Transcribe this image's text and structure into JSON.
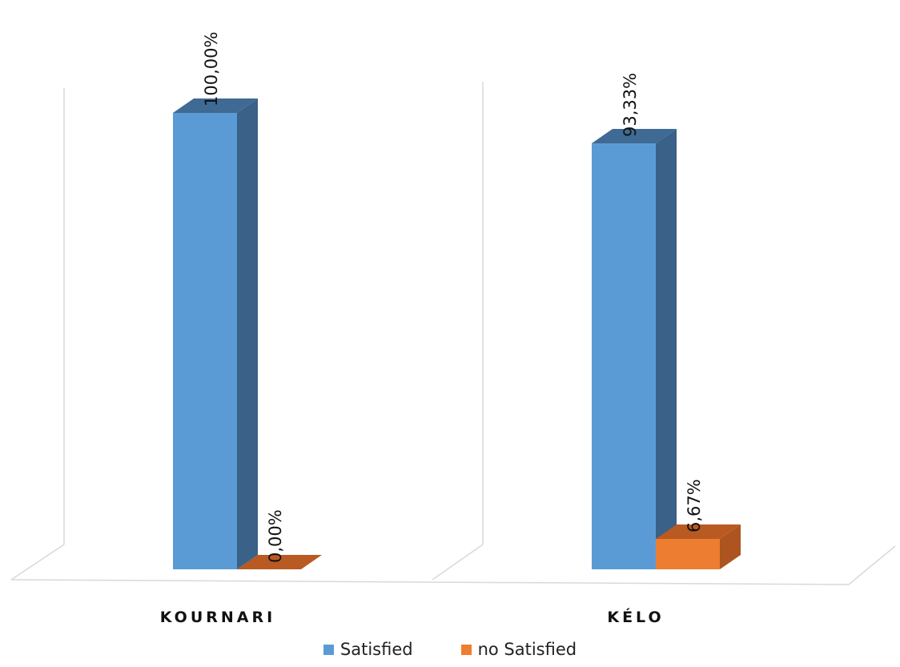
{
  "chart_data": {
    "type": "bar",
    "categories": [
      "KOURNARI",
      "KÉLO"
    ],
    "series": [
      {
        "name": "Satisfied",
        "values": [
          100.0,
          93.33
        ],
        "labels": [
          "100,00%",
          "93,33%"
        ],
        "color": "#5b9bd5",
        "side_color": "#3a6187",
        "top_color": "#3f6a94"
      },
      {
        "name": "no Satisfied",
        "values": [
          0.0,
          6.67
        ],
        "labels": [
          "0,00%",
          "6,67%"
        ],
        "color": "#ed7d31",
        "side_color": "#ad5420",
        "top_color": "#b85a22"
      }
    ],
    "ylim": [
      0,
      100
    ],
    "grid": false,
    "legend_position": "bottom",
    "style": "3d-column"
  }
}
